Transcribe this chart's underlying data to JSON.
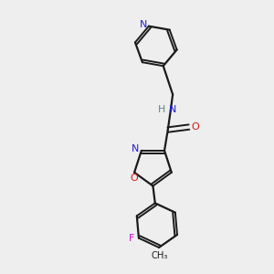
{
  "background_color": "#eeeeee",
  "bond_color": "#1a1a1a",
  "N_color": "#2020cc",
  "O_color": "#dd1111",
  "F_color": "#dd00dd",
  "H_color": "#558888",
  "figsize": [
    3.0,
    3.0
  ],
  "dpi": 100,
  "xlim": [
    0,
    10
  ],
  "ylim": [
    0,
    10
  ]
}
